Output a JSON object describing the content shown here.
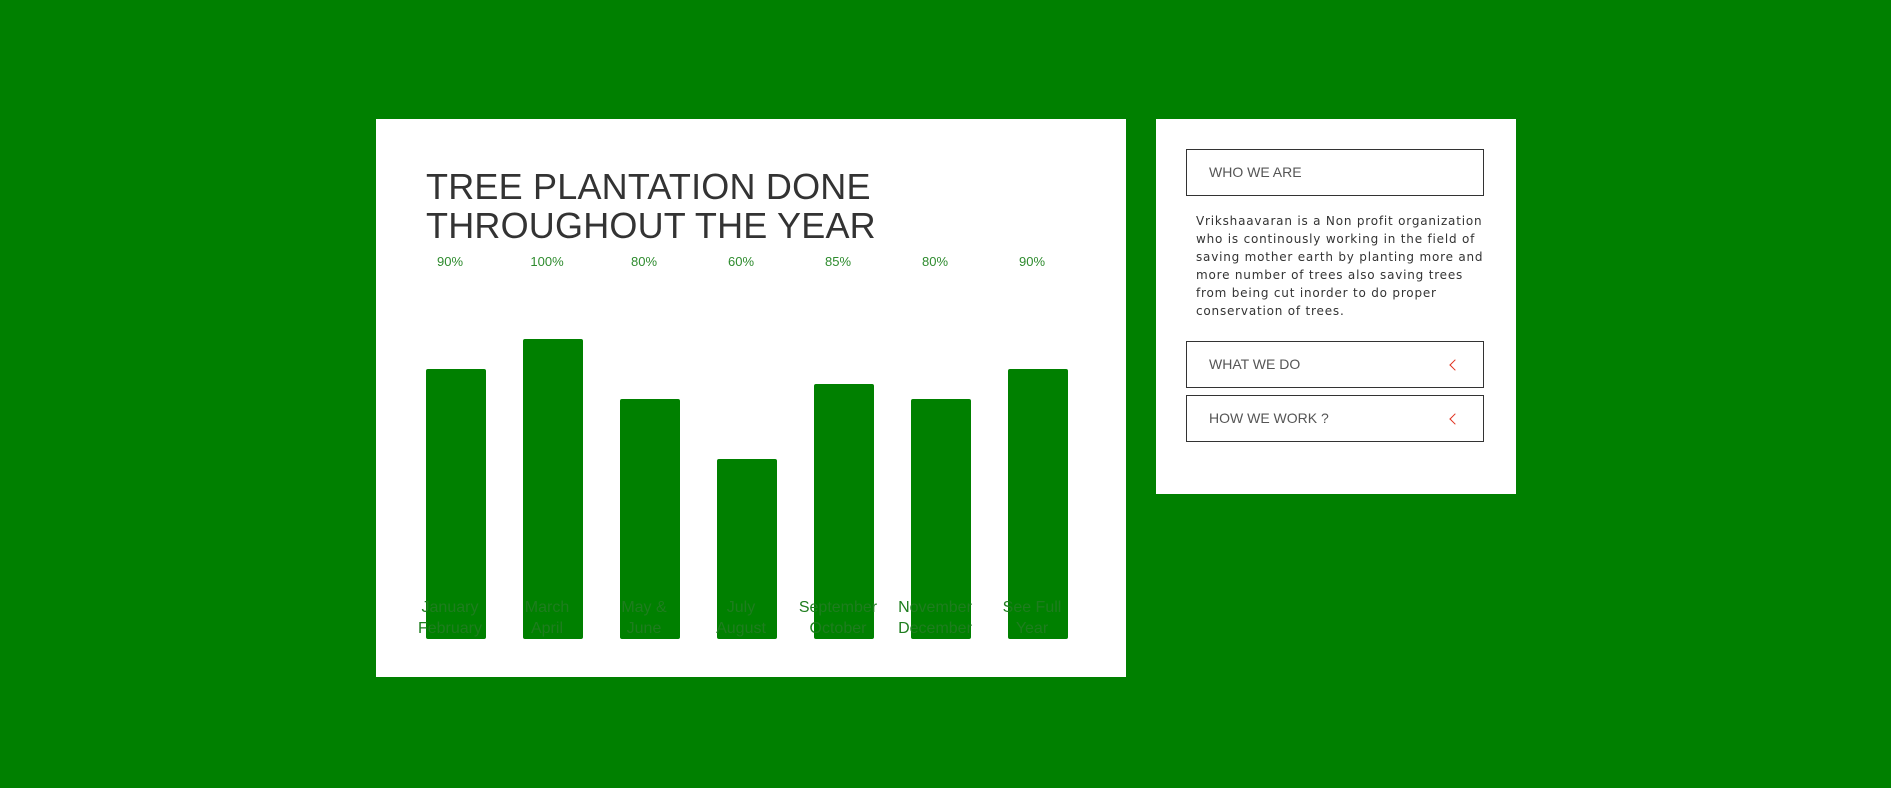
{
  "chart_card": {
    "title_line1": "TREE PLANTATION DONE",
    "title_line2": "THROUGHOUT THE YEAR"
  },
  "chart_data": {
    "type": "bar",
    "title": "TREE PLANTATION DONE THROUGHOUT THE YEAR",
    "categories": [
      [
        "January",
        "February"
      ],
      [
        "March",
        "April"
      ],
      [
        "May &",
        "June"
      ],
      [
        "July",
        "August"
      ],
      [
        "September",
        "October"
      ],
      [
        "November",
        "December"
      ],
      [
        "See Full",
        "Year"
      ]
    ],
    "values": [
      90,
      100,
      80,
      60,
      85,
      80,
      90
    ],
    "value_labels": [
      "90%",
      "100%",
      "80%",
      "60%",
      "85%",
      "80%",
      "90%"
    ],
    "ylim": [
      0,
      100
    ],
    "grid": false,
    "bar_color": "#008000"
  },
  "info": {
    "who_title": "WHO WE ARE",
    "who_body": "Vrikshaavaran is a Non profit organization who is continously working in the field of saving mother earth by planting more and more number of trees also saving trees from being cut inorder to do proper conservation of trees.",
    "what_title": "WHAT WE DO",
    "how_title": "HOW WE WORK ?",
    "expand_icon": "chevron-left-icon",
    "accent_color": "#e0301e"
  },
  "colors": {
    "background": "#008000",
    "card": "#ffffff",
    "bar": "#008000"
  }
}
